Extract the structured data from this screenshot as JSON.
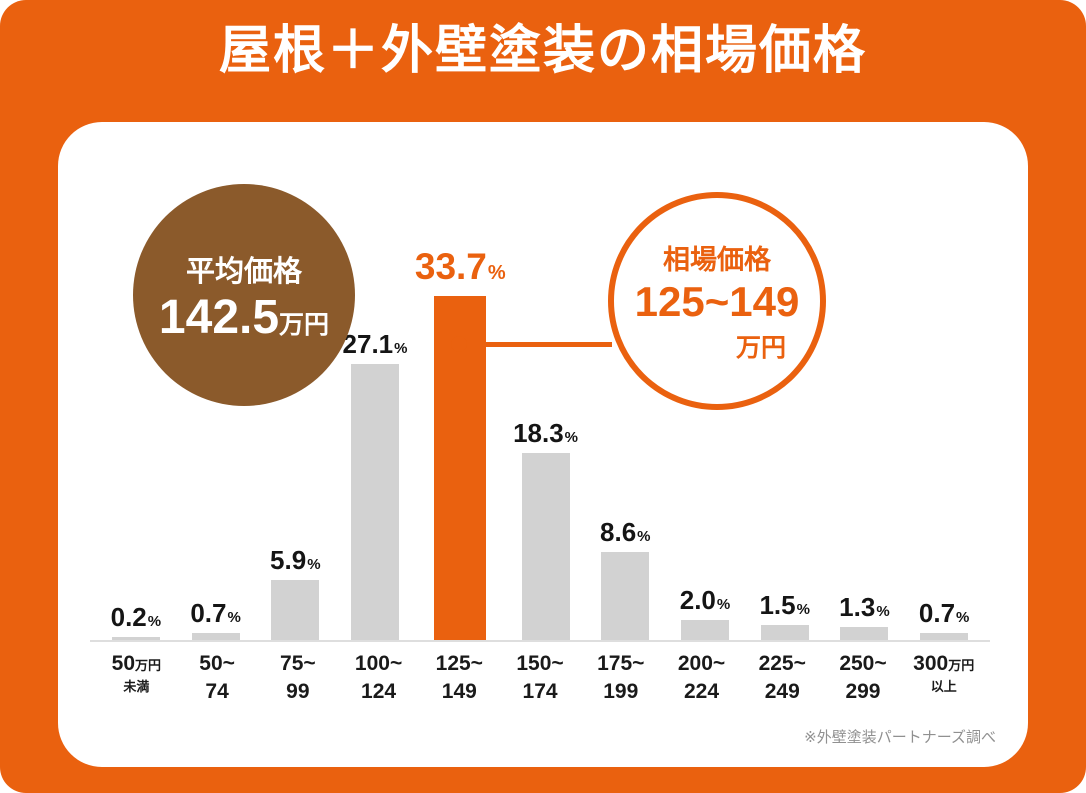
{
  "title": "屋根＋外壁塗装の相場価格",
  "source_note": "※外壁塗装パートナーズ調べ",
  "colors": {
    "accent_orange": "#EA610F",
    "bubble_brown": "#8B5A2B",
    "bar_gray": "#D2D2D2"
  },
  "average_bubble": {
    "label": "平均価格",
    "value": "142.5",
    "unit": "万円"
  },
  "market_bubble": {
    "label": "相場価格",
    "value": "125~149",
    "unit": "万円"
  },
  "chart_data": {
    "type": "bar",
    "title": "屋根＋外壁塗装の相場価格",
    "value_unit": "%",
    "categories": [
      {
        "top": "50",
        "top_unit": "万円",
        "bottom": "未満",
        "bottom_small": true
      },
      {
        "top": "50~",
        "bottom": "74"
      },
      {
        "top": "75~",
        "bottom": "99"
      },
      {
        "top": "100~",
        "bottom": "124"
      },
      {
        "top": "125~",
        "bottom": "149"
      },
      {
        "top": "150~",
        "bottom": "174"
      },
      {
        "top": "175~",
        "bottom": "199"
      },
      {
        "top": "200~",
        "bottom": "224"
      },
      {
        "top": "225~",
        "bottom": "249"
      },
      {
        "top": "250~",
        "bottom": "299"
      },
      {
        "top": "300",
        "top_unit": "万円",
        "bottom": "以上",
        "bottom_small": true
      }
    ],
    "values": [
      0.2,
      0.7,
      5.9,
      27.1,
      33.7,
      18.3,
      8.6,
      2.0,
      1.5,
      1.3,
      0.7
    ],
    "highlight_index": 4,
    "ylim": [
      0,
      35
    ],
    "grid": false,
    "legend": false
  }
}
